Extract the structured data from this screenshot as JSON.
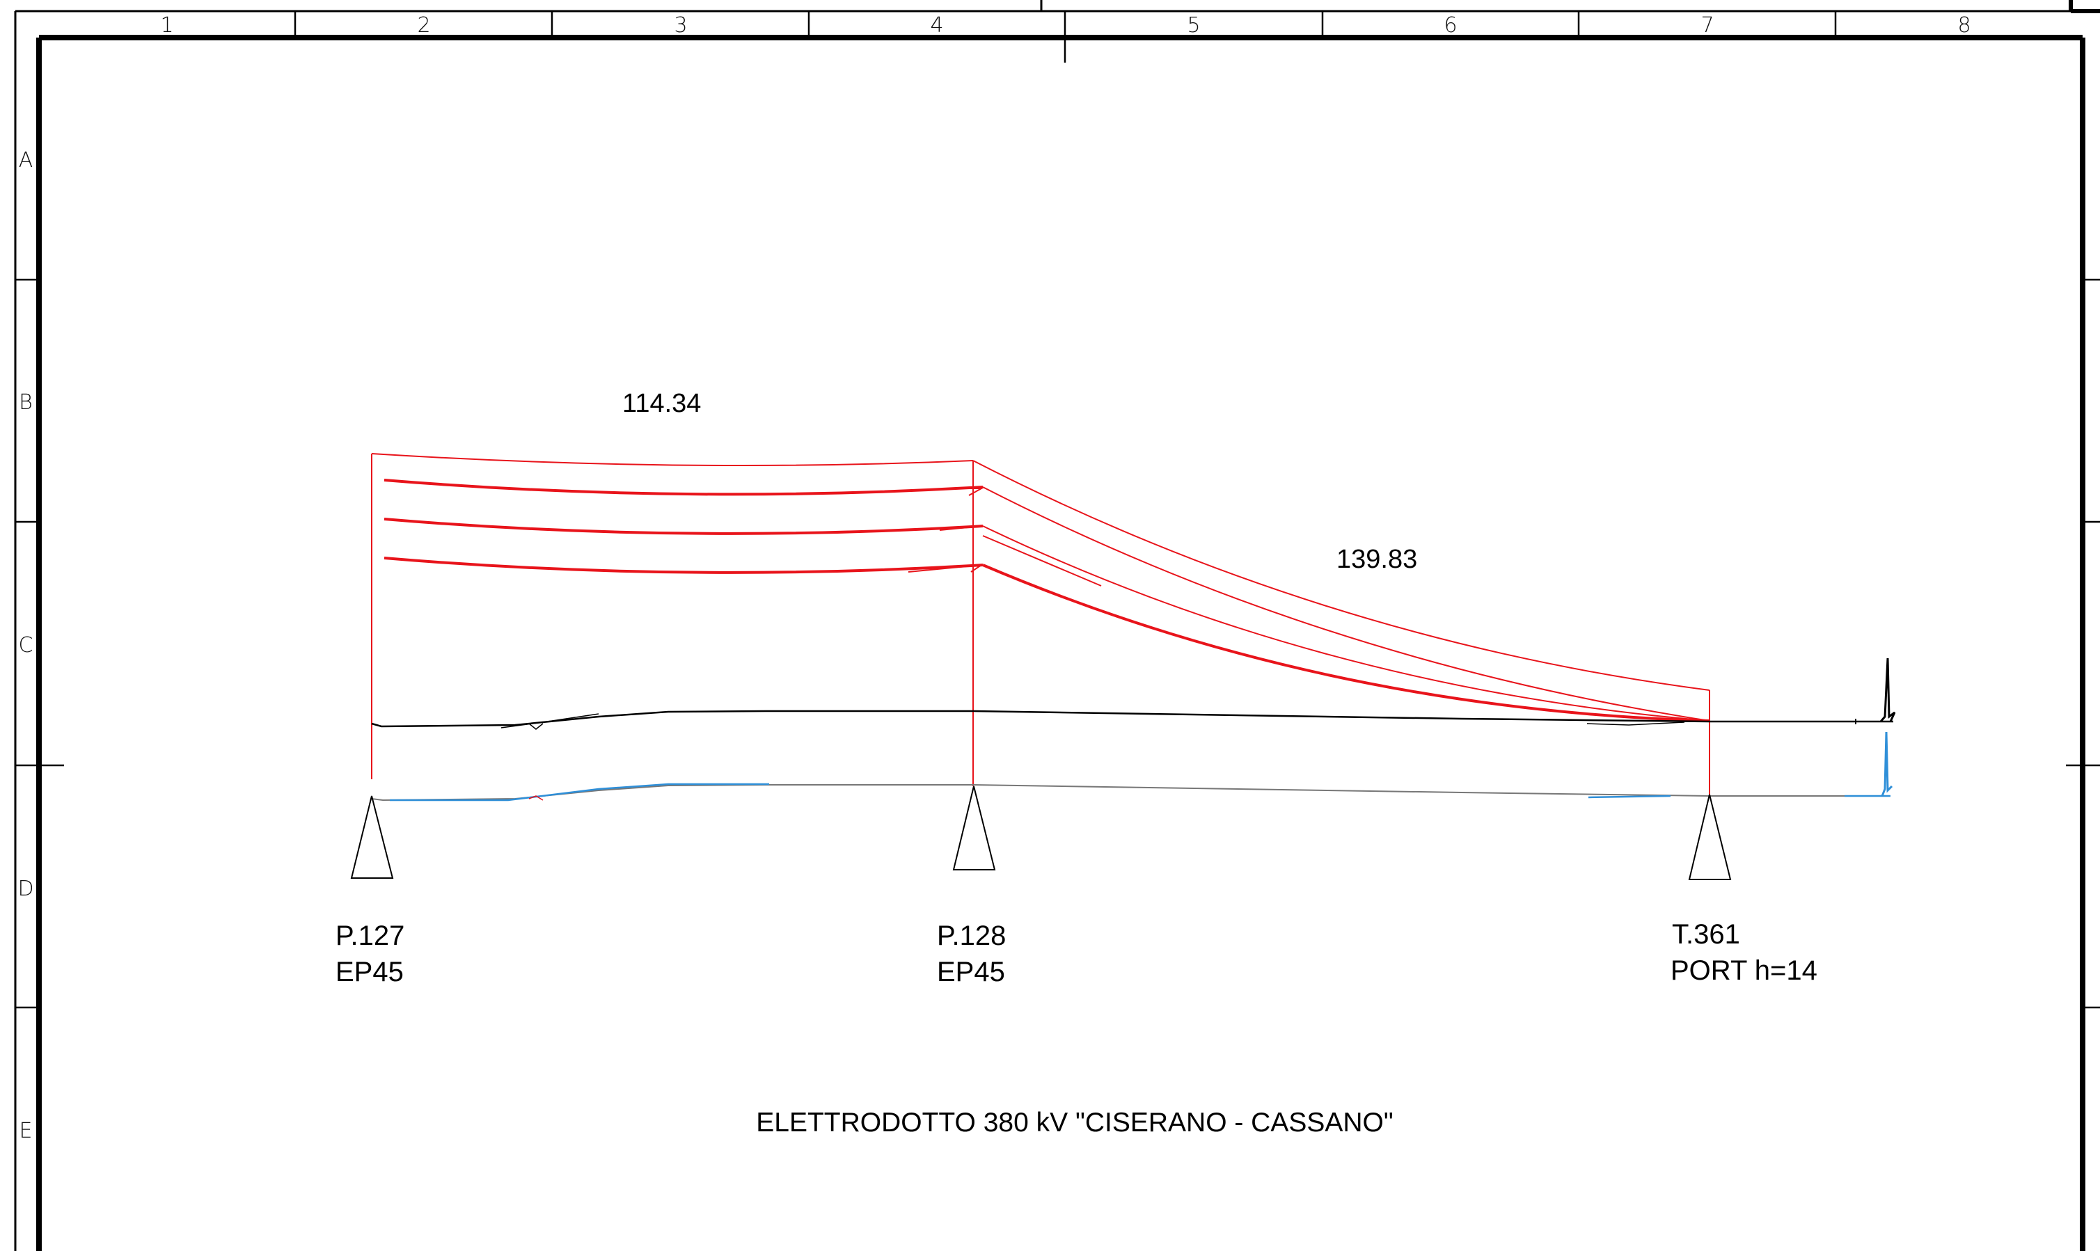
{
  "frame": {
    "columns": [
      "1",
      "2",
      "3",
      "4",
      "5",
      "6",
      "7",
      "8"
    ],
    "rows": [
      "A",
      "B",
      "C",
      "D",
      "E"
    ]
  },
  "colors": {
    "conductor": "#e8141b",
    "ground_profile": "#000000",
    "ground_profile_alt": "#2f8fd8",
    "frame": "#000000"
  },
  "spans": [
    {
      "label": "114.34"
    },
    {
      "label": "139.83"
    }
  ],
  "supports": [
    {
      "id": "P.127",
      "type": "EP45"
    },
    {
      "id": "P.128",
      "type": "EP45"
    },
    {
      "id": "T.361",
      "type": "PORT h=14"
    }
  ],
  "title": "ELETTRODOTTO 380 kV \"CISERANO - CASSANO\""
}
